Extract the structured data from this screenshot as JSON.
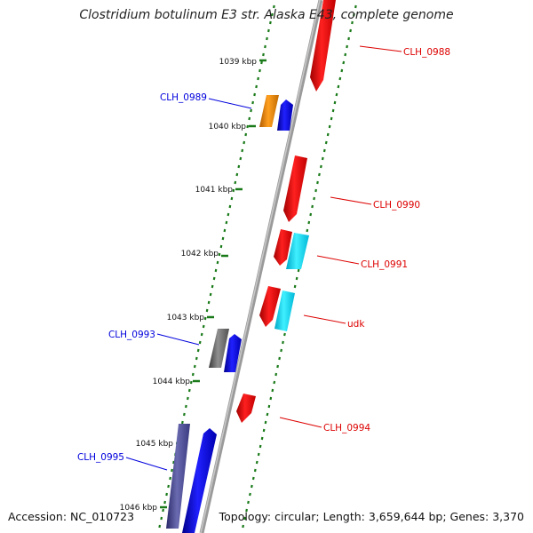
{
  "title": "Clostridium botulinum E3 str. Alaska E43, complete genome",
  "accession": "Accession: NC_010723",
  "summary": "Topology: circular; Length: 3,659,644 bp; Genes: 3,370",
  "colors": {
    "backbone": "#888888",
    "gc_dots": "#1a7a1a",
    "label_blue": "#0000dd",
    "label_red": "#dd0000"
  },
  "scale_ticks": [
    {
      "label": "1039 kbp"
    },
    {
      "label": "1040 kbp"
    },
    {
      "label": "1041 kbp"
    },
    {
      "label": "1042 kbp"
    },
    {
      "label": "1043 kbp"
    },
    {
      "label": "1044 kbp"
    },
    {
      "label": "1045 kbp"
    },
    {
      "label": "1046 kbp"
    }
  ],
  "gene_labels": [
    {
      "name": "CLH_0988",
      "color": "red"
    },
    {
      "name": "CLH_0989",
      "color": "blue"
    },
    {
      "name": "CLH_0990",
      "color": "red"
    },
    {
      "name": "CLH_0991",
      "color": "red"
    },
    {
      "name": "udk",
      "color": "red"
    },
    {
      "name": "CLH_0993",
      "color": "blue"
    },
    {
      "name": "CLH_0994",
      "color": "red"
    },
    {
      "name": "CLH_0995",
      "color": "blue"
    }
  ]
}
